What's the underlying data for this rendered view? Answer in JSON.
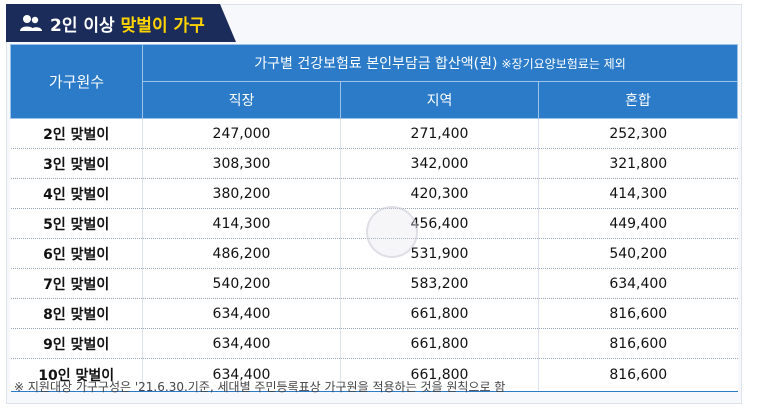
{
  "title": {
    "main": "2인 이상",
    "highlight": "맞벌이 가구",
    "icon": "people-icon"
  },
  "table": {
    "rowhead": "가구원수",
    "group_header": "가구별 건강보험료 본인부담금 합산액(원)",
    "group_note": "※장기요양보험료는 제외",
    "columns": [
      "직장",
      "지역",
      "혼합"
    ],
    "rows": [
      {
        "label": "2인 맞벌이",
        "values": [
          "247,000",
          "271,400",
          "252,300"
        ]
      },
      {
        "label": "3인 맞벌이",
        "values": [
          "308,300",
          "342,000",
          "321,800"
        ]
      },
      {
        "label": "4인 맞벌이",
        "values": [
          "380,200",
          "420,300",
          "414,300"
        ]
      },
      {
        "label": "5인 맞벌이",
        "values": [
          "414,300",
          "456,400",
          "449,400"
        ]
      },
      {
        "label": "6인 맞벌이",
        "values": [
          "486,200",
          "531,900",
          "540,200"
        ]
      },
      {
        "label": "7인 맞벌이",
        "values": [
          "540,200",
          "583,200",
          "634,400"
        ]
      },
      {
        "label": "8인 맞벌이",
        "values": [
          "634,400",
          "661,800",
          "816,600"
        ]
      },
      {
        "label": "9인 맞벌이",
        "values": [
          "634,400",
          "661,800",
          "816,600"
        ]
      },
      {
        "label": "10인 맞벌이",
        "values": [
          "634,400",
          "661,800",
          "816,600"
        ]
      }
    ]
  },
  "footnote": "※ 지원대상 가구구성은 '21.6.30.기준, 세대별 주민등록표상 가구원을 적용하는 것을 원칙으로 함",
  "colors": {
    "navy": "#1c2c5a",
    "blue": "#2b7bc9",
    "yellow": "#ffd400"
  }
}
